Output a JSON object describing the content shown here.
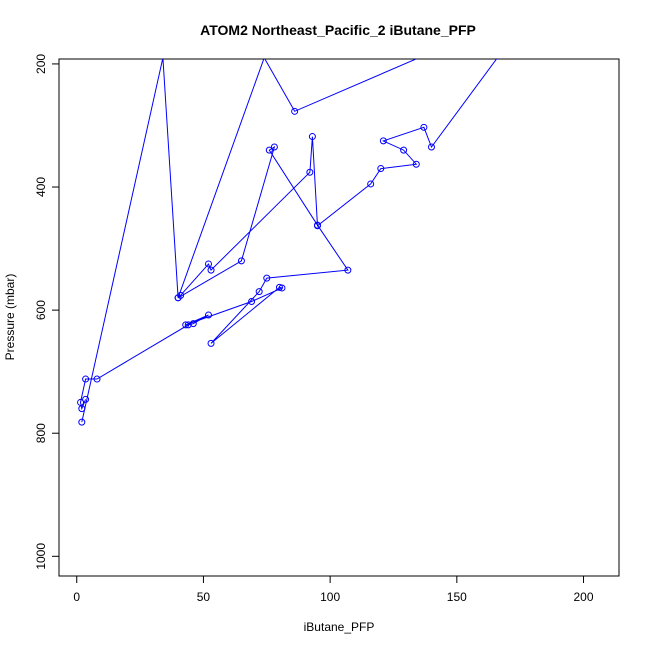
{
  "chart_data": {
    "type": "line",
    "title": "ATOM2 Northeast_Pacific_2 iButane_PFP",
    "xlabel": "iButane_PFP",
    "ylabel": "Pressure (mbar)",
    "xlim": [
      -7,
      214
    ],
    "ylim": [
      1032,
      192
    ],
    "y_reversed": true,
    "x_ticks": [
      0,
      50,
      100,
      150,
      200
    ],
    "y_ticks": [
      200,
      400,
      600,
      800,
      1000
    ],
    "grid": false,
    "legend": "none",
    "line_color": "#0000ff",
    "marker": "open-circle",
    "series": [
      {
        "points": [
          [
            3.5,
            745
          ],
          [
            2,
            760
          ],
          [
            1.5,
            750
          ],
          [
            3.5,
            712
          ],
          [
            8,
            712
          ],
          [
            44,
            624
          ],
          [
            46,
            622
          ],
          [
            52,
            608
          ],
          [
            43,
            624
          ],
          [
            69,
            586
          ],
          [
            81,
            564
          ],
          [
            80,
            563
          ],
          [
            53,
            654
          ],
          [
            72,
            570
          ],
          [
            75,
            548
          ],
          [
            107,
            535
          ],
          [
            95,
            462
          ],
          [
            76,
            340
          ],
          [
            78,
            335
          ],
          [
            65,
            520
          ],
          [
            40,
            580
          ],
          [
            41,
            576
          ],
          [
            52,
            525
          ],
          [
            53,
            535
          ],
          [
            92,
            376
          ],
          [
            93,
            318
          ],
          [
            95,
            463
          ],
          [
            116,
            395
          ],
          [
            120,
            370
          ],
          [
            134,
            363
          ],
          [
            129,
            340
          ],
          [
            121,
            325
          ],
          [
            137,
            303
          ],
          [
            140,
            335
          ],
          [
            166,
            190
          ],
          [
            116,
            190
          ],
          [
            105,
            190
          ],
          [
            135,
            190
          ],
          [
            86,
            277
          ],
          [
            74,
            190
          ],
          [
            40,
            580
          ],
          [
            34,
            190
          ],
          [
            2,
            782
          ]
        ]
      }
    ]
  }
}
